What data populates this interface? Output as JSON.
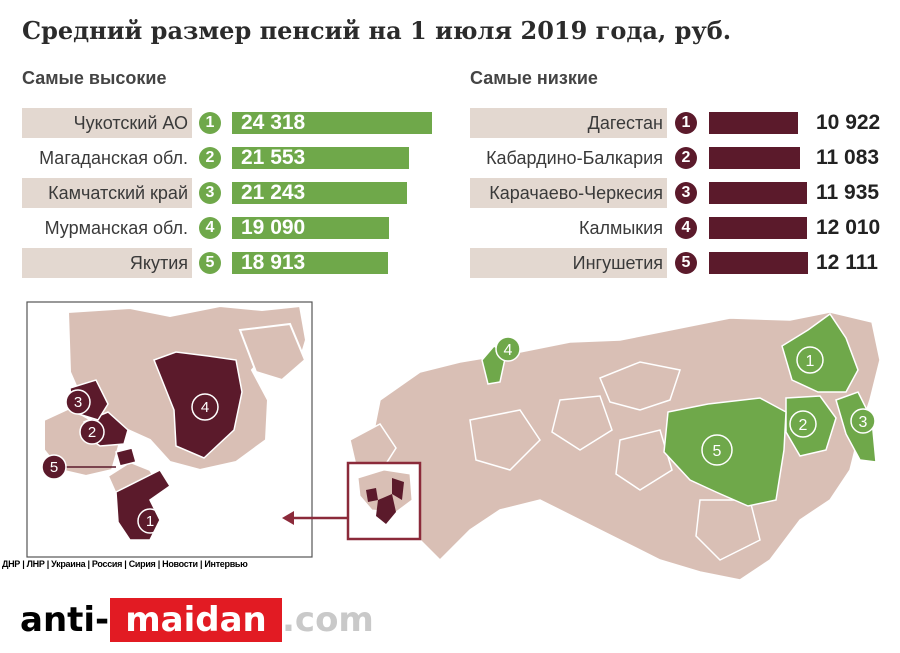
{
  "chart_data": {
    "type": "bar",
    "title": "Средний размер пенсий на 1 июля 2019 года, руб.",
    "highest": {
      "subtitle": "Самые высокие",
      "color": "#6fa84a",
      "items": [
        {
          "rank": "1",
          "region": "Чукотский АО",
          "value": 24318,
          "value_label": "24 318"
        },
        {
          "rank": "2",
          "region": "Магаданская обл.",
          "value": 21553,
          "value_label": "21 553"
        },
        {
          "rank": "3",
          "region": "Камчатский край",
          "value": 21243,
          "value_label": "21 243"
        },
        {
          "rank": "4",
          "region": "Мурманская обл.",
          "value": 19090,
          "value_label": "19 090"
        },
        {
          "rank": "5",
          "region": "Якутия",
          "value": 18913,
          "value_label": "18 913"
        }
      ]
    },
    "lowest": {
      "subtitle": "Самые низкие",
      "color": "#5b1a2b",
      "items": [
        {
          "rank": "1",
          "region": "Дагестан",
          "value": 10922,
          "value_label": "10 922"
        },
        {
          "rank": "2",
          "region": "Кабардино-Балкария",
          "value": 11083,
          "value_label": "11 083"
        },
        {
          "rank": "3",
          "region": "Карачаево-Черкесия",
          "value": 11935,
          "value_label": "11 935"
        },
        {
          "rank": "4",
          "region": "Калмыкия",
          "value": 12010,
          "value_label": "12 010"
        },
        {
          "rank": "5",
          "region": "Ингушетия",
          "value": 12111,
          "value_label": "12 111"
        }
      ]
    },
    "map": {
      "base_color": "#d9bfb5",
      "highest_color": "#6fa84a",
      "lowest_color": "#5b1a2b",
      "highest_labels": [
        "1",
        "2",
        "3",
        "4",
        "5"
      ],
      "lowest_labels": [
        "1",
        "2",
        "3",
        "4",
        "5"
      ]
    }
  },
  "watermark": {
    "nav_line": "ДНР | ЛНР | Украина | Россия | Сирия | Новости | Интервью",
    "logo_part1": "anti-",
    "logo_part2": "maidan",
    "logo_part3": ".com"
  }
}
